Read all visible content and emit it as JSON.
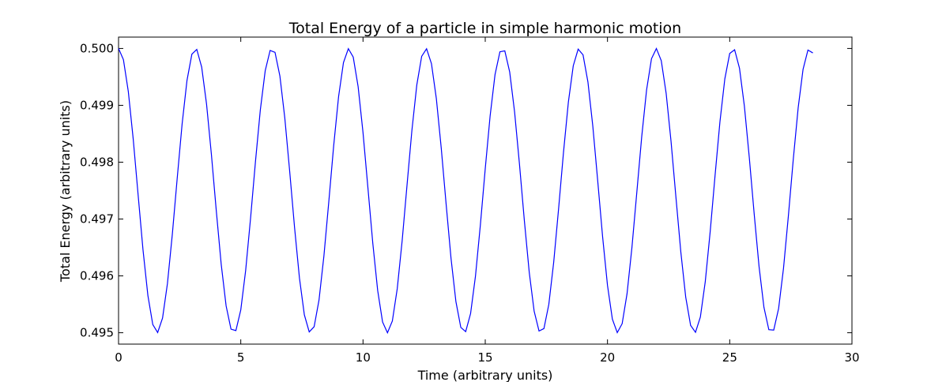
{
  "chart_data": {
    "type": "line",
    "title": "Total Energy of a particle in simple harmonic motion",
    "xlabel": "Time (arbitrary units)",
    "ylabel": "Total Energy (arbitrary units)",
    "xlim": [
      0,
      30
    ],
    "ylim": [
      0.4948,
      0.5002
    ],
    "xticks": [
      0,
      5,
      10,
      15,
      20,
      25,
      30
    ],
    "xtick_labels": [
      "0",
      "5",
      "10",
      "15",
      "20",
      "25",
      "30"
    ],
    "yticks": [
      0.495,
      0.496,
      0.497,
      0.498,
      0.499,
      0.5
    ],
    "ytick_labels": [
      "0.495",
      "0.496",
      "0.497",
      "0.498",
      "0.499",
      "0.500"
    ],
    "grid": false,
    "line_color": "#0000ff",
    "series": [
      {
        "values_description_free": true,
        "x_start": 0,
        "x_end": 28.4,
        "x_step": 0.2,
        "formula_values": {
          "mean": 0.4975,
          "amplitude": 0.0025,
          "period": 3.1416
        }
      }
    ]
  }
}
